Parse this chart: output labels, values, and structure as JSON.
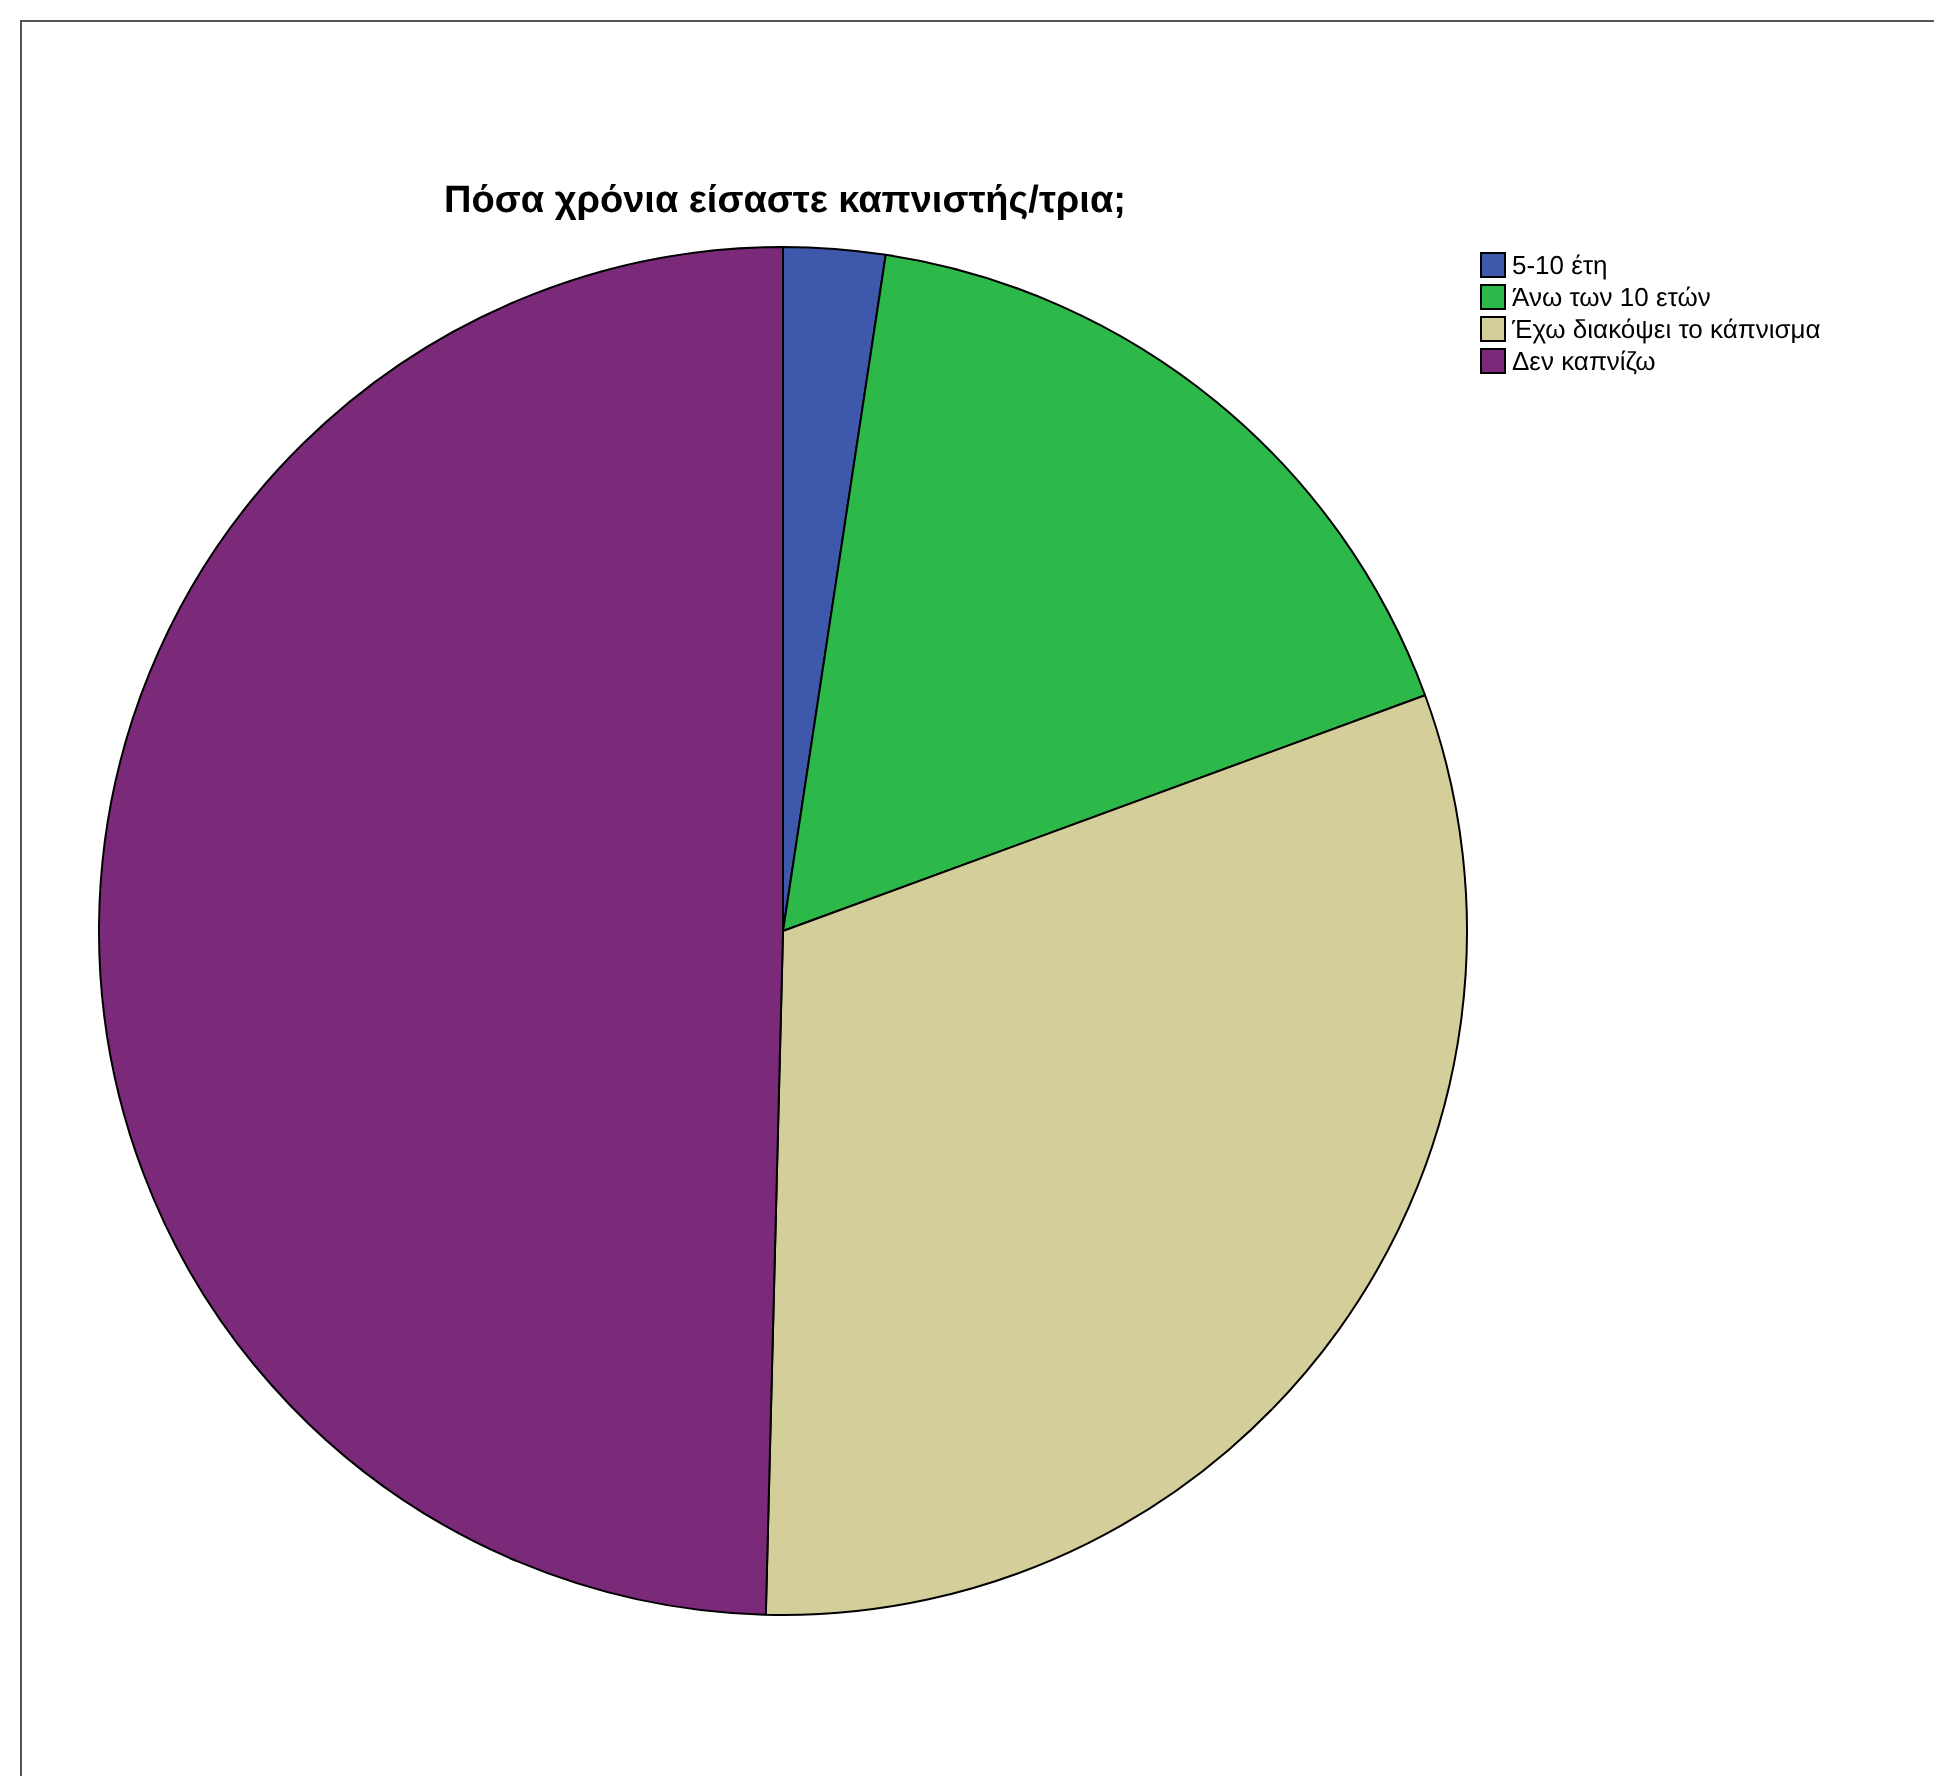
{
  "chart_data": {
    "type": "pie",
    "title": "Πόσα χρόνια είσαστε καπνιστής/τρια;",
    "categories": [
      "5-10 έτη",
      "Άνω των 10 ετών",
      "Έχω διακόψει το κάπνισμα",
      "Δεν καπνίζω"
    ],
    "values": [
      2.4,
      17.0,
      31.0,
      49.6
    ],
    "colors": [
      "#3e58ac",
      "#2db84a",
      "#d4cf9a",
      "#7b2a7a"
    ],
    "legend": "top right"
  }
}
